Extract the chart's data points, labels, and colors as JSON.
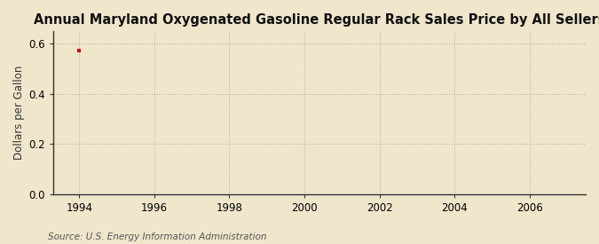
{
  "title": "Annual Maryland Oxygenated Gasoline Regular Rack Sales Price by All Sellers",
  "ylabel": "Dollars per Gallon",
  "xlabel": "",
  "background_color": "#f0e6cc",
  "plot_bg_color": "#f0e6cc",
  "data_x": [
    1994
  ],
  "data_y": [
    0.572
  ],
  "data_color": "#cc0000",
  "xlim": [
    1993.3,
    2007.5
  ],
  "ylim": [
    0.0,
    0.65
  ],
  "yticks": [
    0.0,
    0.2,
    0.4,
    0.6
  ],
  "xticks": [
    1994,
    1996,
    1998,
    2000,
    2002,
    2004,
    2006
  ],
  "grid_color": "#aaaaaa",
  "source_text": "Source: U.S. Energy Information Administration",
  "title_fontsize": 10.5,
  "label_fontsize": 8.5,
  "tick_fontsize": 8.5,
  "source_fontsize": 7.5
}
